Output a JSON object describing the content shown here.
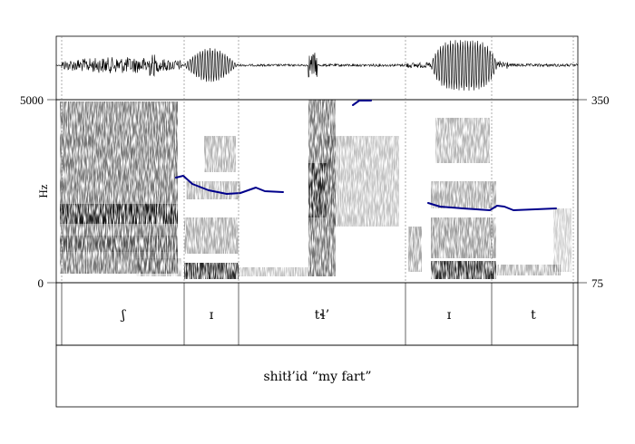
{
  "axes": {
    "left_top": "5000",
    "left_bottom": "0",
    "left_unit": "Hz",
    "right_top": "350",
    "right_bottom": "75"
  },
  "segments": [
    "ʃ",
    "ɪ",
    "tɬ’",
    "ɪ",
    "t"
  ],
  "caption": "shitł’id “my fart”",
  "colors": {
    "pitch": "#00008b",
    "spectrogram": "#000000"
  }
}
